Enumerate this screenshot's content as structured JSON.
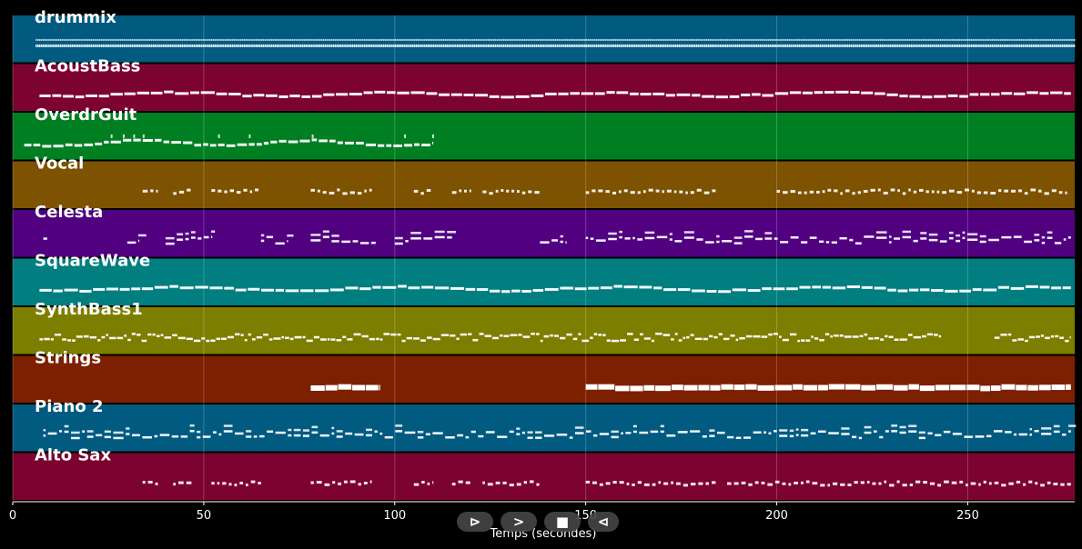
{
  "chart_data": {
    "type": "piano-roll",
    "xlabel": "Temps (secondes)",
    "xlim": [
      0,
      278
    ],
    "xticks": [
      0,
      50,
      100,
      150,
      200,
      250
    ],
    "grid": true,
    "tracks": [
      {
        "name": "drummix",
        "color": "#015a80",
        "segments": [
          [
            6,
            278
          ]
        ],
        "style": "drums"
      },
      {
        "name": "AcoustBass",
        "color": "#7c0230",
        "segments": [
          [
            7,
            277
          ]
        ],
        "style": "bass"
      },
      {
        "name": "OverdrGuit",
        "color": "#007e22",
        "segments": [
          [
            3,
            110
          ]
        ],
        "style": "guitar"
      },
      {
        "name": "Vocal",
        "color": "#7d5200",
        "segments": [
          [
            34,
            38
          ],
          [
            42,
            47
          ],
          [
            52,
            65
          ],
          [
            78,
            94
          ],
          [
            105,
            110
          ],
          [
            115,
            120
          ],
          [
            123,
            138
          ],
          [
            150,
            184
          ],
          [
            200,
            276
          ]
        ],
        "style": "sparse"
      },
      {
        "name": "Celesta",
        "color": "#510080",
        "segments": [
          [
            8,
            9
          ],
          [
            30,
            33
          ],
          [
            40,
            52
          ],
          [
            65,
            72
          ],
          [
            78,
            95
          ],
          [
            100,
            115
          ],
          [
            138,
            145
          ],
          [
            150,
            277
          ]
        ],
        "style": "chords"
      },
      {
        "name": "SquareWave",
        "color": "#007e80",
        "segments": [
          [
            7,
            277
          ]
        ],
        "style": "bass"
      },
      {
        "name": "SynthBass1",
        "color": "#7c7e00",
        "segments": [
          [
            7,
            243
          ],
          [
            257,
            277
          ]
        ],
        "style": "dense"
      },
      {
        "name": "Strings",
        "color": "#7c2000",
        "segments": [
          [
            78,
            96
          ],
          [
            150,
            277
          ]
        ],
        "style": "pad"
      },
      {
        "name": "Piano 2",
        "color": "#015a80",
        "segments": [
          [
            8,
            277
          ]
        ],
        "style": "chords"
      },
      {
        "name": "Alto Sax",
        "color": "#7c0230",
        "segments": [
          [
            34,
            38
          ],
          [
            42,
            47
          ],
          [
            52,
            65
          ],
          [
            78,
            94
          ],
          [
            105,
            110
          ],
          [
            115,
            120
          ],
          [
            123,
            138
          ],
          [
            150,
            184
          ],
          [
            187,
            277
          ]
        ],
        "style": "sparse"
      }
    ]
  },
  "controls": {
    "play_label": "⊳",
    "forward_label": ">",
    "stop_label": "■",
    "back_label": "⊲"
  }
}
